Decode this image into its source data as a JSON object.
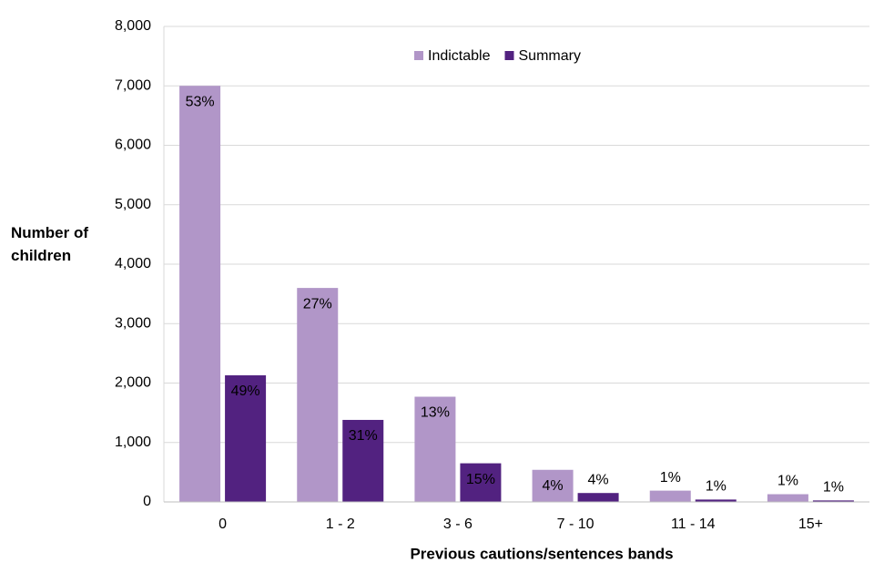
{
  "chart_data": {
    "type": "bar",
    "xlabel": "Previous cautions/sentences bands",
    "ylabel": "Number of children",
    "categories": [
      "0",
      "1 - 2",
      "3 - 6",
      "7 - 10",
      "11 - 14",
      "15+"
    ],
    "series": [
      {
        "name": "Indictable",
        "color": "#b196c8",
        "values": [
          7000,
          3600,
          1770,
          540,
          190,
          130
        ],
        "share_labels": [
          "53%",
          "27%",
          "13%",
          "4%",
          "1%",
          "1%"
        ]
      },
      {
        "name": "Summary",
        "color": "#522280",
        "values": [
          2130,
          1380,
          650,
          150,
          40,
          25
        ],
        "share_labels": [
          "49%",
          "31%",
          "15%",
          "4%",
          "1%",
          "1%"
        ]
      }
    ],
    "ylim": [
      0,
      8000
    ],
    "yticks": [
      0,
      {
        "value": 1000,
        "label": "1,000"
      },
      {
        "value": 2000,
        "label": "2,000"
      },
      {
        "value": 3000,
        "label": "3,000"
      },
      {
        "value": 4000,
        "label": "4,000"
      },
      {
        "value": 5000,
        "label": "5,000"
      },
      {
        "value": 6000,
        "label": "6,000"
      },
      {
        "value": 7000,
        "label": "7,000"
      },
      {
        "value": 8000,
        "label": "8,000"
      }
    ],
    "grid": true,
    "legend": "top"
  }
}
